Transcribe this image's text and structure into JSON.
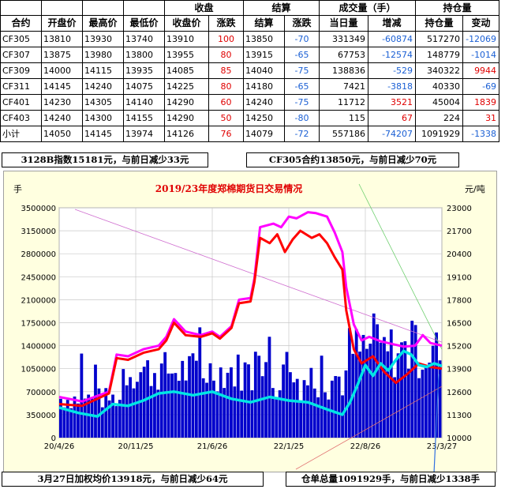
{
  "table": {
    "group_headers": {
      "close": "收盘",
      "settle": "结算",
      "volume": "成交量（手）",
      "oi": "持仓量"
    },
    "headers": {
      "contract": "合约",
      "open": "开盘价",
      "high": "最高价",
      "low": "最低价",
      "close": "收盘价",
      "close_chg": "涨跌",
      "settle": "结算",
      "settle_chg": "涨跌",
      "vol": "当日量",
      "vol_chg": "增减",
      "oi": "持仓量",
      "oi_chg": "变动"
    },
    "rows": [
      {
        "contract": "CF305",
        "open": "13810",
        "high": "13930",
        "low": "13740",
        "close": "13910",
        "close_chg": "100",
        "settle": "13850",
        "settle_chg": "-70",
        "vol": "331349",
        "vol_chg": "-60874",
        "oi": "517270",
        "oi_chg": "-12069",
        "cc_color": "up",
        "vc_color": "dn",
        "oc_color": "dn"
      },
      {
        "contract": "CF307",
        "open": "13875",
        "high": "13980",
        "low": "13800",
        "close": "13955",
        "close_chg": "80",
        "settle": "13915",
        "settle_chg": "-65",
        "vol": "67753",
        "vol_chg": "-12574",
        "oi": "148779",
        "oi_chg": "-1014",
        "cc_color": "up",
        "vc_color": "dn",
        "oc_color": "dn"
      },
      {
        "contract": "CF309",
        "open": "14000",
        "high": "14115",
        "low": "13935",
        "close": "14085",
        "close_chg": "85",
        "settle": "14040",
        "settle_chg": "-75",
        "vol": "138836",
        "vol_chg": "-529",
        "oi": "340322",
        "oi_chg": "9944",
        "cc_color": "up",
        "vc_color": "dn",
        "oc_color": "up"
      },
      {
        "contract": "CF311",
        "open": "14145",
        "high": "14240",
        "low": "14075",
        "close": "14225",
        "close_chg": "80",
        "settle": "14180",
        "settle_chg": "-65",
        "vol": "7421",
        "vol_chg": "-3818",
        "oi": "40330",
        "oi_chg": "-69",
        "cc_color": "up",
        "vc_color": "dn",
        "oc_color": "dn"
      },
      {
        "contract": "CF401",
        "open": "14230",
        "high": "14305",
        "low": "14140",
        "close": "14290",
        "close_chg": "60",
        "settle": "14240",
        "settle_chg": "-75",
        "vol": "11712",
        "vol_chg": "3521",
        "oi": "45004",
        "oi_chg": "1839",
        "cc_color": "up",
        "vc_color": "up",
        "oc_color": "up"
      },
      {
        "contract": "CF403",
        "open": "14240",
        "high": "14300",
        "low": "14155",
        "close": "14290",
        "close_chg": "50",
        "settle": "14250",
        "settle_chg": "-80",
        "vol": "115",
        "vol_chg": "67",
        "oi": "224",
        "oi_chg": "31",
        "cc_color": "up",
        "vc_color": "up",
        "oc_color": "up"
      },
      {
        "contract": "小计",
        "open": "14050",
        "high": "14145",
        "low": "13974",
        "close": "14126",
        "close_chg": "76",
        "settle": "14079",
        "settle_chg": "-72",
        "vol": "557186",
        "vol_chg": "-74207",
        "oi": "1091929",
        "oi_chg": "-1338",
        "cc_color": "up",
        "vc_color": "dn",
        "oc_color": "dn"
      }
    ]
  },
  "notes": {
    "index": "3128B指数15181元，与前日减少33元",
    "cf305": "CF305合约13850元，与前日减少70元",
    "avg": "3月27日加权均价13918元，与前日减少64元",
    "warehouse": "仓单总量1091929手，与前日减少1338手"
  },
  "chart_data": {
    "type": "line",
    "title": "2019/23年度郑棉期货日交易情况",
    "ylabel_left": "手",
    "ylabel_right": "元/吨",
    "x_tick_labels": [
      "20/4/26",
      "20/11/25",
      "21/6/26",
      "22/1/25",
      "22/8/26",
      "23/3/27"
    ],
    "y_left_ticks": [
      "0",
      "350000",
      "700000",
      "1050000",
      "1400000",
      "1750000",
      "2100000",
      "2450000",
      "2800000",
      "3150000",
      "3500000"
    ],
    "y_right_ticks": [
      "10000",
      "11300",
      "12600",
      "13900",
      "15200",
      "16500",
      "17800",
      "19100",
      "20400",
      "21700",
      "23000"
    ],
    "ylim_left": [
      0,
      3500000
    ],
    "ylim_right": [
      10000,
      23000
    ],
    "grid": true,
    "series": [
      {
        "kind": "price-magenta",
        "color": "#ff00ff",
        "points": [
          [
            0,
            12300
          ],
          [
            0.06,
            12050
          ],
          [
            0.13,
            12600
          ],
          [
            0.15,
            14700
          ],
          [
            0.18,
            14600
          ],
          [
            0.22,
            15000
          ],
          [
            0.26,
            15200
          ],
          [
            0.28,
            15700
          ],
          [
            0.3,
            16700
          ],
          [
            0.33,
            16000
          ],
          [
            0.37,
            15800
          ],
          [
            0.4,
            16000
          ],
          [
            0.42,
            15700
          ],
          [
            0.45,
            16300
          ],
          [
            0.47,
            17800
          ],
          [
            0.5,
            17900
          ],
          [
            0.51,
            19000
          ],
          [
            0.525,
            21900
          ],
          [
            0.56,
            22100
          ],
          [
            0.58,
            21900
          ],
          [
            0.6,
            22500
          ],
          [
            0.62,
            22400
          ],
          [
            0.65,
            22750
          ],
          [
            0.67,
            22700
          ],
          [
            0.7,
            22500
          ],
          [
            0.72,
            21600
          ],
          [
            0.74,
            20500
          ],
          [
            0.75,
            18500
          ],
          [
            0.77,
            16400
          ],
          [
            0.79,
            15500
          ],
          [
            0.81,
            15700
          ],
          [
            0.84,
            15450
          ],
          [
            0.87,
            15300
          ],
          [
            0.9,
            15150
          ],
          [
            0.93,
            15200
          ],
          [
            0.95,
            15800
          ],
          [
            0.97,
            15350
          ],
          [
            1.0,
            15200
          ]
        ]
      },
      {
        "kind": "price-red",
        "color": "#ff0000",
        "points": [
          [
            0,
            11900
          ],
          [
            0.06,
            11800
          ],
          [
            0.13,
            12500
          ],
          [
            0.15,
            14500
          ],
          [
            0.18,
            14400
          ],
          [
            0.22,
            14800
          ],
          [
            0.26,
            15000
          ],
          [
            0.28,
            15500
          ],
          [
            0.3,
            16500
          ],
          [
            0.33,
            15800
          ],
          [
            0.37,
            15700
          ],
          [
            0.4,
            15900
          ],
          [
            0.42,
            15600
          ],
          [
            0.45,
            16200
          ],
          [
            0.47,
            17600
          ],
          [
            0.5,
            17700
          ],
          [
            0.51,
            18800
          ],
          [
            0.525,
            21300
          ],
          [
            0.55,
            21000
          ],
          [
            0.57,
            21500
          ],
          [
            0.59,
            20500
          ],
          [
            0.61,
            21200
          ],
          [
            0.63,
            21700
          ],
          [
            0.66,
            21300
          ],
          [
            0.68,
            21500
          ],
          [
            0.7,
            21000
          ],
          [
            0.72,
            20200
          ],
          [
            0.74,
            19500
          ],
          [
            0.75,
            17200
          ],
          [
            0.77,
            15000
          ],
          [
            0.79,
            14200
          ],
          [
            0.82,
            14600
          ],
          [
            0.85,
            13700
          ],
          [
            0.88,
            13100
          ],
          [
            0.91,
            13600
          ],
          [
            0.94,
            14200
          ],
          [
            0.97,
            14000
          ],
          [
            1.0,
            13900
          ]
        ]
      },
      {
        "kind": "oi-cyan",
        "color": "#00e5e5",
        "points": [
          [
            0,
            11700
          ],
          [
            0.05,
            11400
          ],
          [
            0.1,
            11200
          ],
          [
            0.14,
            11900
          ],
          [
            0.18,
            11800
          ],
          [
            0.22,
            12100
          ],
          [
            0.26,
            12500
          ],
          [
            0.3,
            12600
          ],
          [
            0.35,
            12400
          ],
          [
            0.4,
            12600
          ],
          [
            0.45,
            12200
          ],
          [
            0.5,
            12000
          ],
          [
            0.55,
            12300
          ],
          [
            0.6,
            12100
          ],
          [
            0.65,
            12000
          ],
          [
            0.7,
            11600
          ],
          [
            0.74,
            11300
          ],
          [
            0.76,
            12000
          ],
          [
            0.78,
            13000
          ],
          [
            0.8,
            14100
          ],
          [
            0.82,
            13500
          ],
          [
            0.84,
            14200
          ],
          [
            0.86,
            13800
          ],
          [
            0.88,
            14400
          ],
          [
            0.9,
            14900
          ],
          [
            0.92,
            14700
          ],
          [
            0.94,
            14100
          ],
          [
            0.96,
            14000
          ],
          [
            0.98,
            14200
          ],
          [
            1.0,
            14050
          ]
        ]
      },
      {
        "kind": "volume-bars",
        "color": "#0000cc",
        "bins": 110
      }
    ]
  }
}
